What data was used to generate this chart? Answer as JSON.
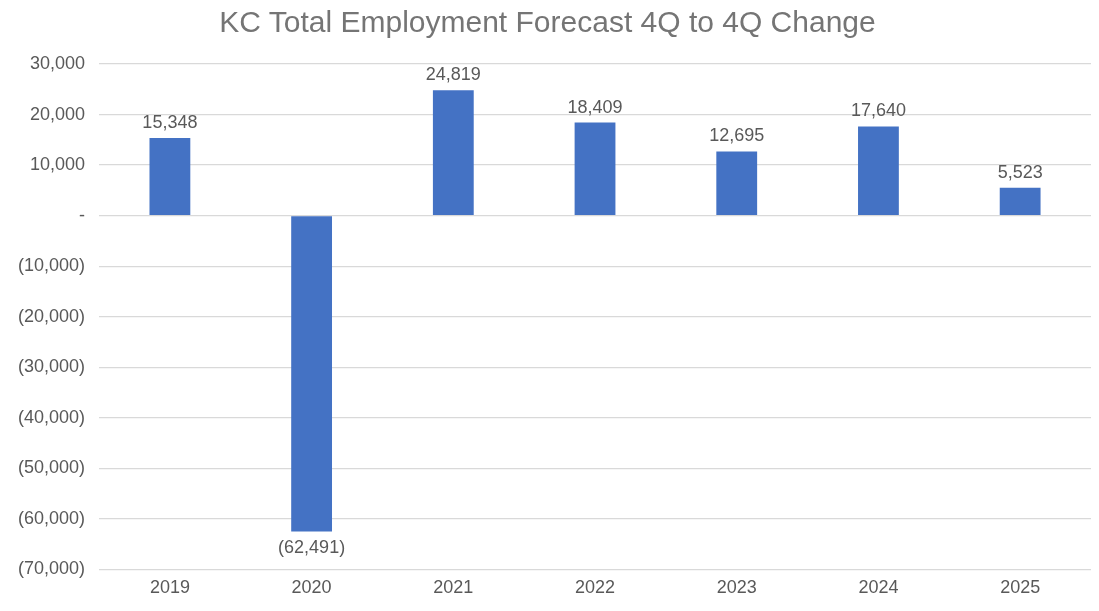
{
  "chart_data": {
    "type": "bar",
    "title": "KC Total Employment Forecast 4Q to 4Q Change",
    "categories": [
      "2019",
      "2020",
      "2021",
      "2022",
      "2023",
      "2024",
      "2025"
    ],
    "values": [
      15348,
      -62491,
      24819,
      18409,
      12695,
      17640,
      5523
    ],
    "color": "#4472c4",
    "value_labels": [
      "15,348",
      "(62,491)",
      "24,819",
      "18,409",
      "12,695",
      "17,640",
      "5,523"
    ],
    "ylim": [
      -70000,
      30000
    ],
    "yticks": [
      {
        "value": -70000,
        "label": "(70,000)"
      },
      {
        "value": -60000,
        "label": "(60,000)"
      },
      {
        "value": -50000,
        "label": "(50,000)"
      },
      {
        "value": -40000,
        "label": "(40,000)"
      },
      {
        "value": -30000,
        "label": "(30,000)"
      },
      {
        "value": -20000,
        "label": "(20,000)"
      },
      {
        "value": -10000,
        "label": "(10,000)"
      },
      {
        "value": 0,
        "label": "-"
      },
      {
        "value": 10000,
        "label": "10,000"
      },
      {
        "value": 20000,
        "label": "20,000"
      },
      {
        "value": 30000,
        "label": "30,000"
      }
    ],
    "grid": "y",
    "legend": false
  }
}
